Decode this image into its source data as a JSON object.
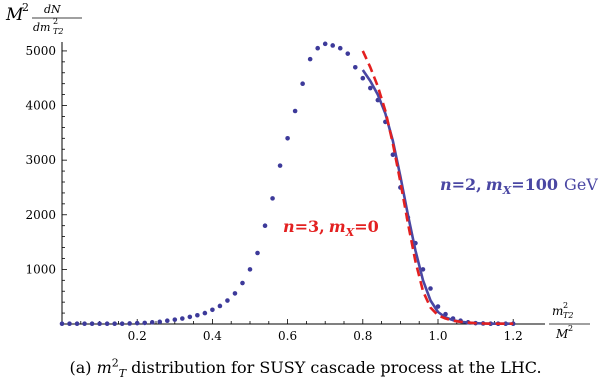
{
  "chart_data": {
    "type": "line",
    "title": "",
    "ylabel": {
      "main": "M",
      "sup": "2",
      "frac_num": "dN",
      "frac_den_base": "dm",
      "frac_den_sup": "2",
      "frac_den_sub": "T2"
    },
    "xlabel": {
      "num_base": "m",
      "num_sup": "2",
      "num_sub": "T2",
      "den_base": "M",
      "den_sup": "2"
    },
    "xlim": [
      0,
      1.25
    ],
    "ylim": [
      0,
      5200
    ],
    "x_ticks": [
      0.2,
      0.4,
      0.6,
      0.8,
      1.0,
      1.2
    ],
    "x_tick_labels": [
      "0.2",
      "0.4",
      "0.6",
      "0.8",
      "1.0",
      "1.2"
    ],
    "y_ticks": [
      1000,
      2000,
      3000,
      4000,
      5000
    ],
    "y_tick_labels": [
      "1000",
      "2000",
      "3000",
      "4000",
      "5000"
    ],
    "grid": false,
    "series": [
      {
        "style": "dots",
        "color": "#3d3a9a",
        "x": [
          0.0,
          0.02,
          0.04,
          0.06,
          0.08,
          0.1,
          0.12,
          0.14,
          0.16,
          0.18,
          0.2,
          0.22,
          0.24,
          0.26,
          0.28,
          0.3,
          0.32,
          0.34,
          0.36,
          0.38,
          0.4,
          0.42,
          0.44,
          0.46,
          0.48,
          0.5,
          0.52,
          0.54,
          0.56,
          0.58,
          0.6,
          0.62,
          0.64,
          0.66,
          0.68,
          0.7,
          0.72,
          0.74,
          0.76,
          0.78,
          0.8,
          0.82,
          0.84,
          0.86,
          0.88,
          0.9,
          0.92,
          0.94,
          0.96,
          0.98,
          1.0,
          1.02,
          1.04,
          1.06,
          1.08,
          1.1,
          1.12,
          1.14,
          1.16,
          1.18,
          1.2
        ],
        "y": [
          5,
          5,
          5,
          5,
          5,
          5,
          5,
          5,
          5,
          10,
          15,
          20,
          30,
          40,
          60,
          80,
          100,
          130,
          160,
          200,
          260,
          330,
          430,
          560,
          750,
          1000,
          1300,
          1800,
          2300,
          2900,
          3400,
          3900,
          4400,
          4850,
          5050,
          5130,
          5100,
          5050,
          4950,
          4700,
          4500,
          4320,
          4100,
          3700,
          3100,
          2500,
          1950,
          1480,
          1000,
          650,
          320,
          180,
          100,
          60,
          30,
          15,
          10,
          5,
          5,
          5,
          5
        ]
      },
      {
        "style": "solid",
        "color": "#4a47a3",
        "label": {
          "n": "n",
          "n_val": "=2,",
          "m": "m",
          "m_sub": "X",
          "m_val": "=100",
          "unit": "GeV"
        },
        "x": [
          0.8,
          0.82,
          0.84,
          0.86,
          0.88,
          0.9,
          0.92,
          0.94,
          0.96,
          0.98,
          1.0,
          1.02,
          1.04,
          1.06,
          1.08,
          1.1,
          1.12,
          1.14,
          1.16,
          1.18,
          1.2
        ],
        "y": [
          4650,
          4450,
          4200,
          3850,
          3350,
          2700,
          2000,
          1350,
          800,
          430,
          220,
          120,
          70,
          40,
          25,
          15,
          10,
          5,
          5,
          5,
          5
        ]
      },
      {
        "style": "dashed",
        "color": "#e32020",
        "label": {
          "n": "n",
          "n_val": "=3,",
          "m": "m",
          "m_sub": "X",
          "m_val": "=0"
        },
        "x": [
          0.8,
          0.82,
          0.84,
          0.86,
          0.88,
          0.9,
          0.92,
          0.94,
          0.96,
          0.98,
          1.0,
          1.02,
          1.04,
          1.06,
          1.08,
          1.1,
          1.12,
          1.14,
          1.16,
          1.18,
          1.2
        ],
        "y": [
          5000,
          4700,
          4350,
          3900,
          3300,
          2600,
          1850,
          1150,
          600,
          300,
          160,
          100,
          60,
          40,
          25,
          15,
          10,
          5,
          5,
          5,
          5
        ]
      }
    ]
  },
  "caption": {
    "prefix": "(a) ",
    "m": "m",
    "m_sup": "2",
    "m_sub": "T",
    "suffix": " distribution for SUSY cascade process at the LHC."
  }
}
